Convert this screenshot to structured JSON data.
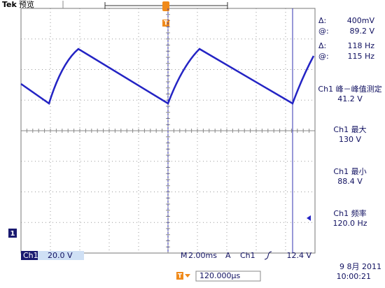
{
  "header": {
    "brand": "Tek",
    "mode": "预览",
    "trigger_marker": "T"
  },
  "cursors": [
    {
      "label": "Δ:",
      "value": "400mV"
    },
    {
      "label": "@:",
      "value": "89.2 V"
    },
    {
      "label": "Δ:",
      "value": "118 Hz"
    },
    {
      "label": "@:",
      "value": "115 Hz"
    }
  ],
  "readouts": [
    {
      "label": "Ch1 峰－峰值测定",
      "value": "41.2 V"
    },
    {
      "label": "Ch1 最大",
      "value": "130 V"
    },
    {
      "label": "Ch1 最小",
      "value": "88.4 V"
    },
    {
      "label": "Ch1 频率",
      "value": "120.0 Hz"
    }
  ],
  "channel_marker": "1",
  "footer": {
    "channel": "Ch1",
    "scale": "20.0 V",
    "timebase_label": "M",
    "timebase": "2.00ms",
    "trigger_mode": "A",
    "trigger_source": "Ch1",
    "trigger_level": "12.4 V",
    "date": "9 8月 2011",
    "time": "10:00:21",
    "position_marker": "T",
    "position": "120.000µs"
  }
}
